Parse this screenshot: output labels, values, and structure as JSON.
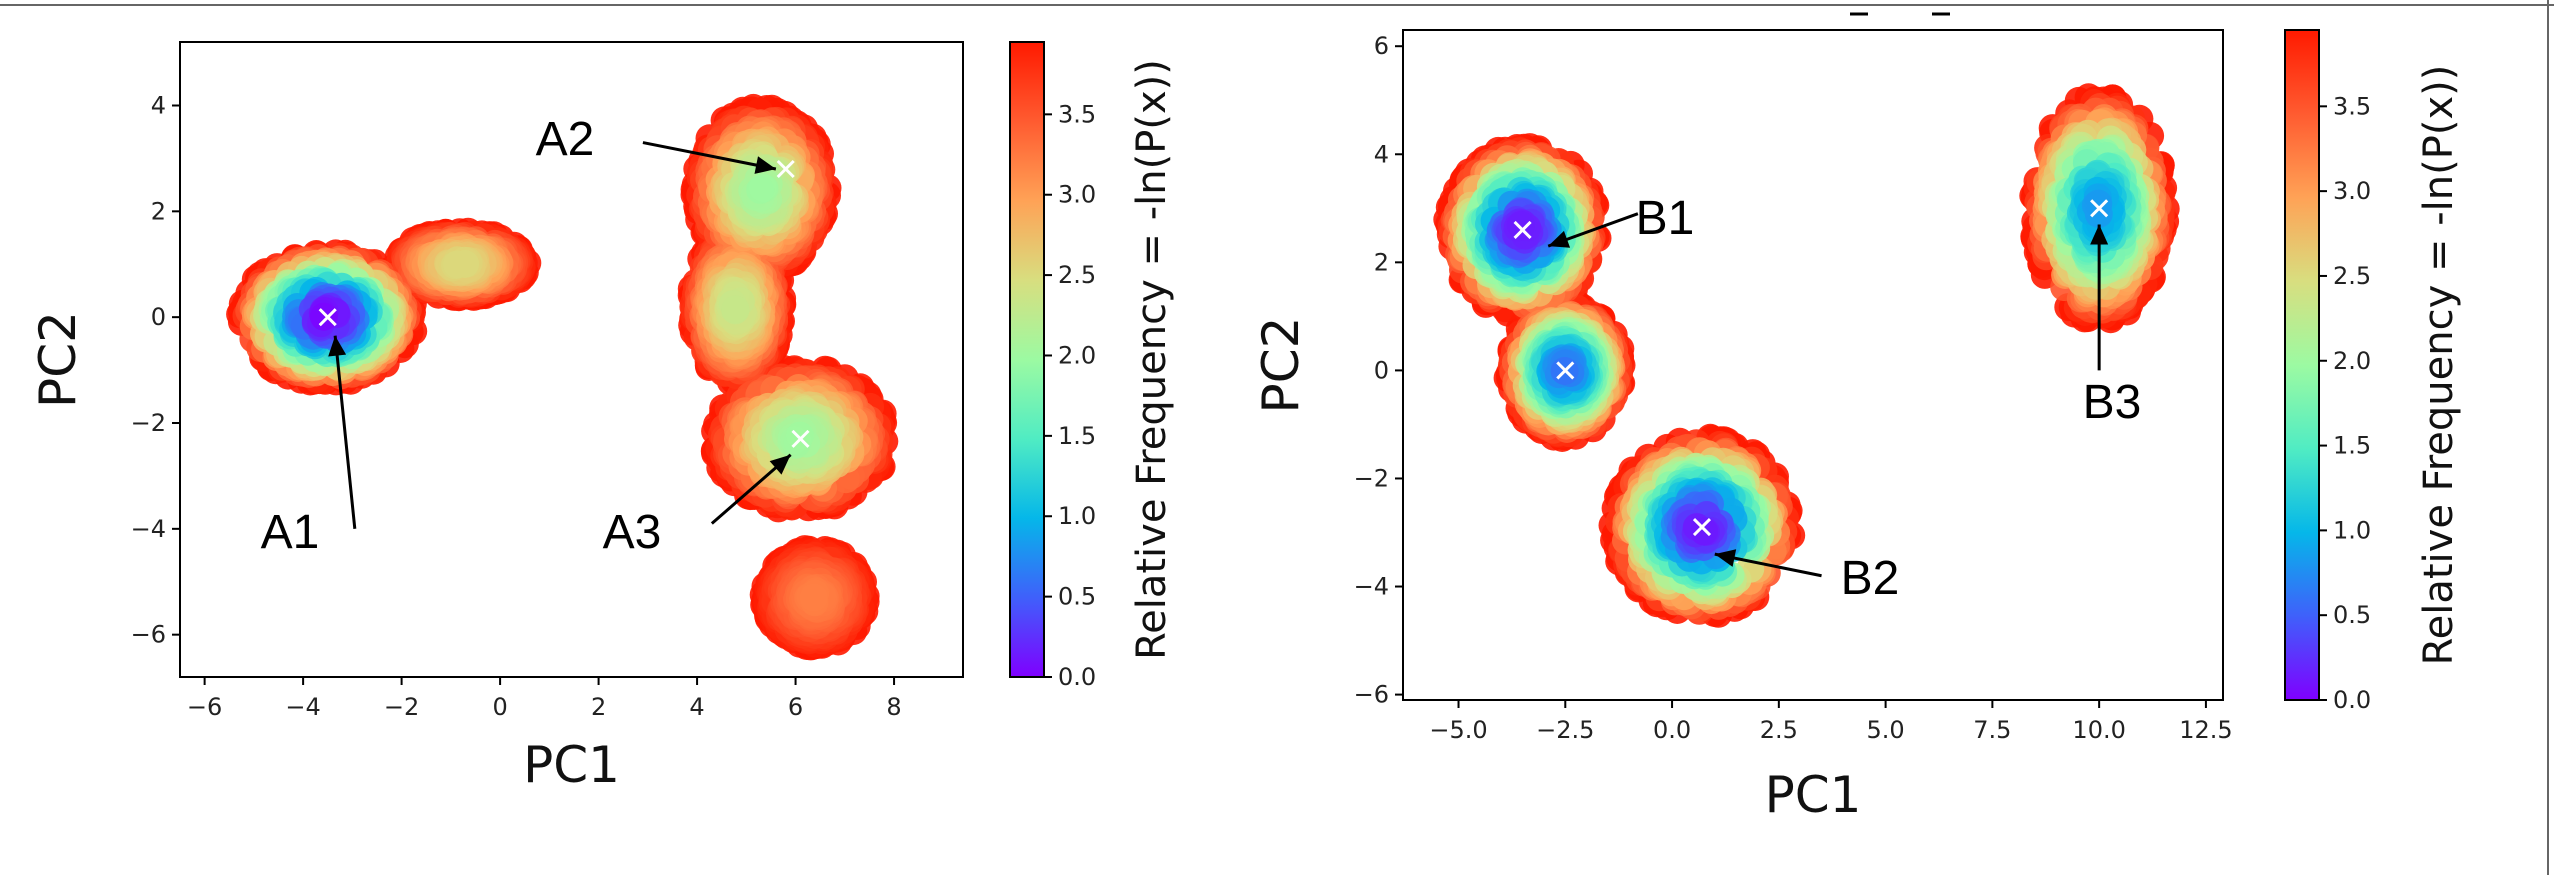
{
  "colorbar": {
    "label": "Relative Frequency = -ln(P(x))",
    "ticks": [
      "0.0",
      "0.5",
      "1.0",
      "1.5",
      "2.0",
      "2.5",
      "3.0",
      "3.5"
    ],
    "range": [
      0,
      3.95
    ],
    "colormap": "rainbow",
    "colors": [
      "#7f00ff",
      "#3f60fb",
      "#05b7e9",
      "#50ecc3",
      "#9cfaa2",
      "#d8de7f",
      "#ffa256",
      "#ff5b30",
      "#ff1a00"
    ]
  },
  "chart_data": [
    {
      "type": "scatter",
      "xlabel": "PC1",
      "ylabel": "PC2",
      "xlim": [
        -6.5,
        9.4
      ],
      "ylim": [
        -6.8,
        5.2
      ],
      "xticks": [
        -6,
        -4,
        -2,
        0,
        2,
        4,
        6,
        8
      ],
      "yticks": [
        -6,
        -4,
        -2,
        0,
        2,
        4
      ],
      "xtick_labels": [
        "−6",
        "−4",
        "−2",
        "0",
        "2",
        "4",
        "6",
        "8"
      ],
      "ytick_labels": [
        "−6",
        "−4",
        "−2",
        "0",
        "2",
        "4"
      ],
      "color_by": "-ln(P(x))",
      "clusters": [
        {
          "center": [
            -3.5,
            0.0
          ],
          "spread": [
            1.7,
            1.2
          ],
          "min_value": 0.0
        },
        {
          "center": [
            -0.8,
            1.0
          ],
          "spread": [
            1.3,
            0.6
          ],
          "min_value": 2.5
        },
        {
          "center": [
            5.3,
            2.4
          ],
          "spread": [
            1.3,
            1.5
          ],
          "min_value": 2.0
        },
        {
          "center": [
            4.8,
            0.2
          ],
          "spread": [
            0.9,
            1.4
          ],
          "min_value": 2.3
        },
        {
          "center": [
            6.1,
            -2.3
          ],
          "spread": [
            1.7,
            1.3
          ],
          "min_value": 2.0
        },
        {
          "center": [
            6.4,
            -5.3
          ],
          "spread": [
            1.0,
            0.9
          ],
          "min_value": 3.2
        }
      ],
      "markers": [
        {
          "label": "A1",
          "x": -3.5,
          "y": 0.0
        },
        {
          "label": "A2",
          "x": 5.8,
          "y": 2.8
        },
        {
          "label": "A3",
          "x": 6.1,
          "y": -2.3
        }
      ]
    },
    {
      "type": "scatter",
      "xlabel": "PC1",
      "ylabel": "PC2",
      "xlim": [
        -6.3,
        12.9
      ],
      "ylim": [
        -6.1,
        6.3
      ],
      "xticks": [
        -5.0,
        -2.5,
        0.0,
        2.5,
        5.0,
        7.5,
        10.0,
        12.5
      ],
      "yticks": [
        -6,
        -4,
        -2,
        0,
        2,
        4,
        6
      ],
      "xtick_labels": [
        "−5.0",
        "−2.5",
        "0.0",
        "2.5",
        "5.0",
        "7.5",
        "10.0",
        "12.5"
      ],
      "ytick_labels": [
        "−6",
        "−4",
        "−2",
        "0",
        "2",
        "4",
        "6"
      ],
      "color_by": "-ln(P(x))",
      "clusters": [
        {
          "center": [
            -3.5,
            2.6
          ],
          "spread": [
            1.7,
            1.5
          ],
          "min_value": 0.1
        },
        {
          "center": [
            -2.5,
            0.0
          ],
          "spread": [
            1.3,
            1.2
          ],
          "min_value": 0.6
        },
        {
          "center": [
            0.7,
            -2.9
          ],
          "spread": [
            2.0,
            1.6
          ],
          "min_value": 0.1
        },
        {
          "center": [
            10.0,
            3.0
          ],
          "spread": [
            1.5,
            2.0
          ],
          "min_value": 0.8
        }
      ],
      "markers": [
        {
          "label": "B1",
          "x": -3.5,
          "y": 2.6
        },
        {
          "label": "",
          "x": -2.5,
          "y": 0.0
        },
        {
          "label": "B2",
          "x": 0.7,
          "y": -2.9
        },
        {
          "label": "B3",
          "x": 10.0,
          "y": 3.0
        }
      ]
    }
  ]
}
